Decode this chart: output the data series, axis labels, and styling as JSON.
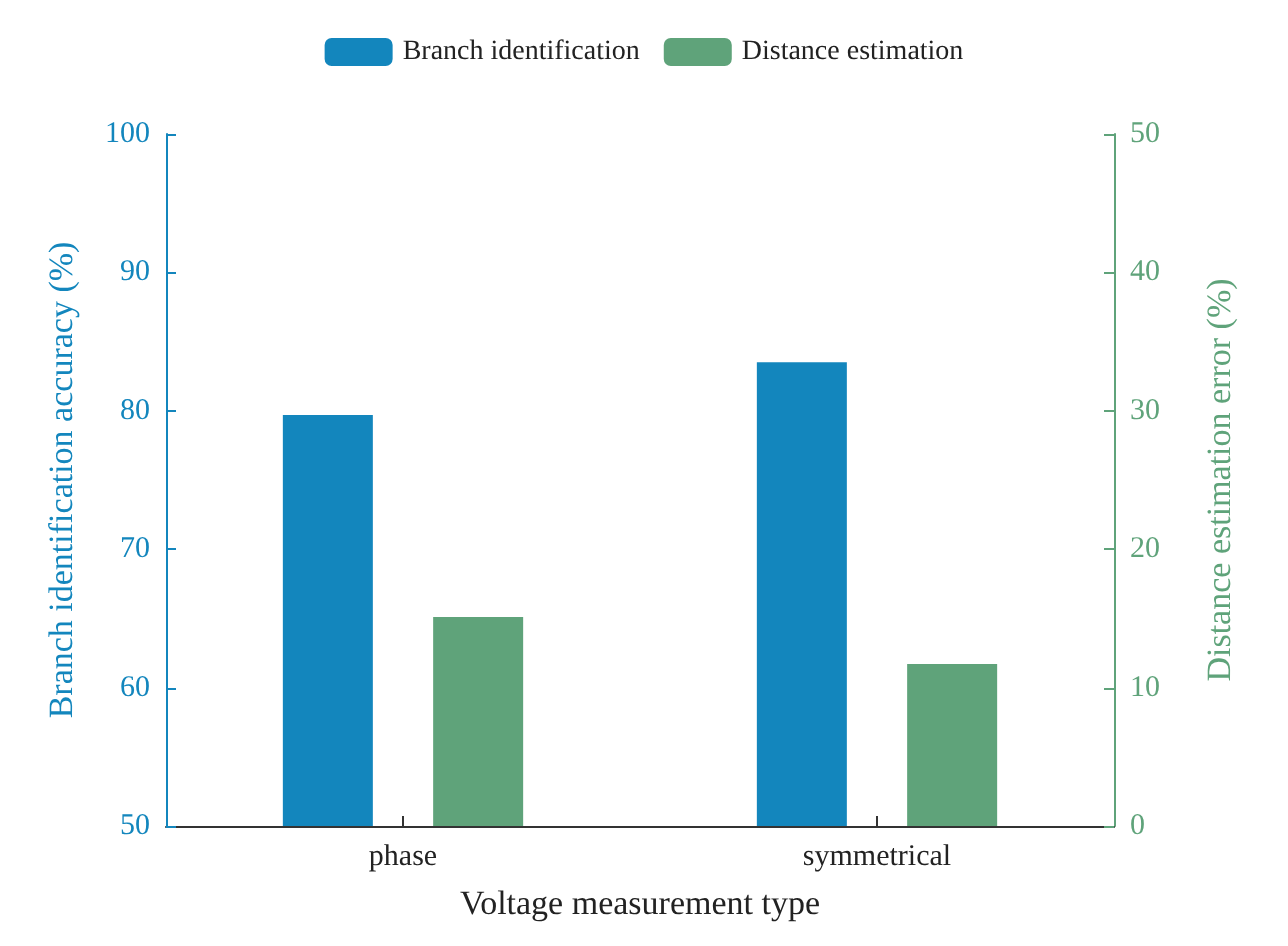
{
  "chart_data": {
    "type": "bar",
    "xlabel": "Voltage measurement type",
    "ylabel": "Branch identification accuracy (%)",
    "y2label": "Distance estimation error (%)",
    "categories": [
      "phase",
      "symmetrical"
    ],
    "series": [
      {
        "name": "Branch identification",
        "color": "#1386bd",
        "values": [
          79.7,
          83.5
        ]
      },
      {
        "name": "Distance estimation",
        "color": "#5fa37a",
        "values": [
          15.1,
          11.7
        ],
        "axis": "y2"
      }
    ],
    "ylim": [
      50,
      100
    ],
    "yticks": [
      50,
      60,
      70,
      80,
      90,
      100
    ],
    "y2lim": [
      0,
      50
    ],
    "y2ticks": [
      0,
      10,
      20,
      30,
      40,
      50
    ],
    "grid": false,
    "legend": "top"
  }
}
